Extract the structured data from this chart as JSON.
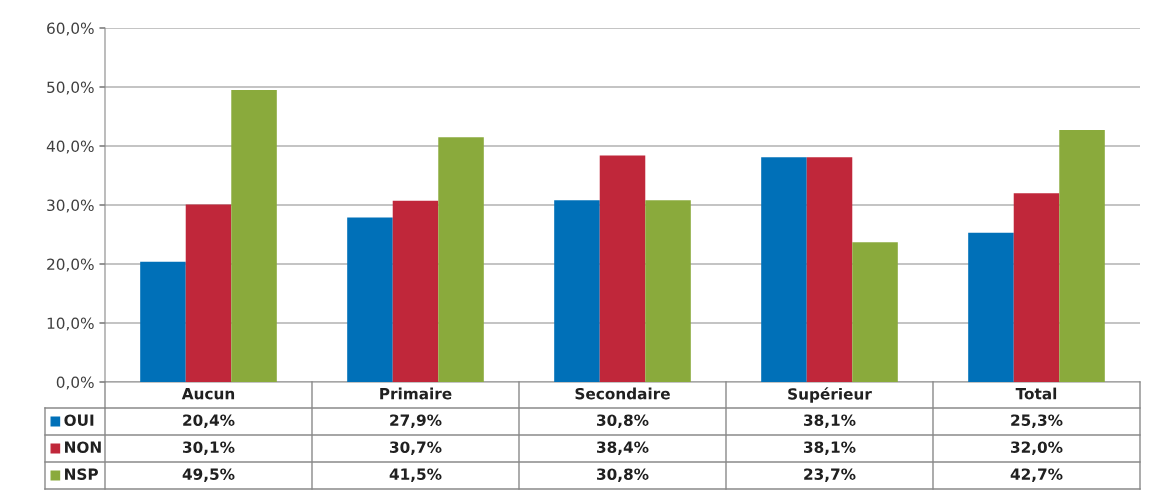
{
  "chart_data": {
    "type": "bar",
    "categories": [
      "Aucun",
      "Primaire",
      "Secondaire",
      "Supérieur",
      "Total"
    ],
    "series": [
      {
        "name": "OUI",
        "color": "#0070b8",
        "values": [
          20.4,
          27.9,
          30.8,
          38.1,
          25.3
        ],
        "value_labels": [
          "20,4%",
          "27,9%",
          "30,8%",
          "38,1%",
          "25,3%"
        ]
      },
      {
        "name": "NON",
        "color": "#c0273a",
        "values": [
          30.1,
          30.7,
          38.4,
          38.1,
          32.0
        ],
        "value_labels": [
          "30,1%",
          "30,7%",
          "38,4%",
          "38,1%",
          "32,0%"
        ]
      },
      {
        "name": "NSP",
        "color": "#8aaa3c",
        "values": [
          49.5,
          41.5,
          30.8,
          23.7,
          42.7
        ],
        "value_labels": [
          "49,5%",
          "41,5%",
          "30,8%",
          "23,7%",
          "42,7%"
        ]
      }
    ],
    "ylim": [
      0,
      60
    ],
    "yticks": [
      {
        "value": 0,
        "label": "0,0%"
      },
      {
        "value": 10,
        "label": "10,0%"
      },
      {
        "value": 20,
        "label": "20,0%"
      },
      {
        "value": 30,
        "label": "30,0%"
      },
      {
        "value": 40,
        "label": "40,0%"
      },
      {
        "value": 50,
        "label": "50,0%"
      },
      {
        "value": 60,
        "label": "60,0%"
      }
    ],
    "grid": "y",
    "legend": "bottom"
  }
}
